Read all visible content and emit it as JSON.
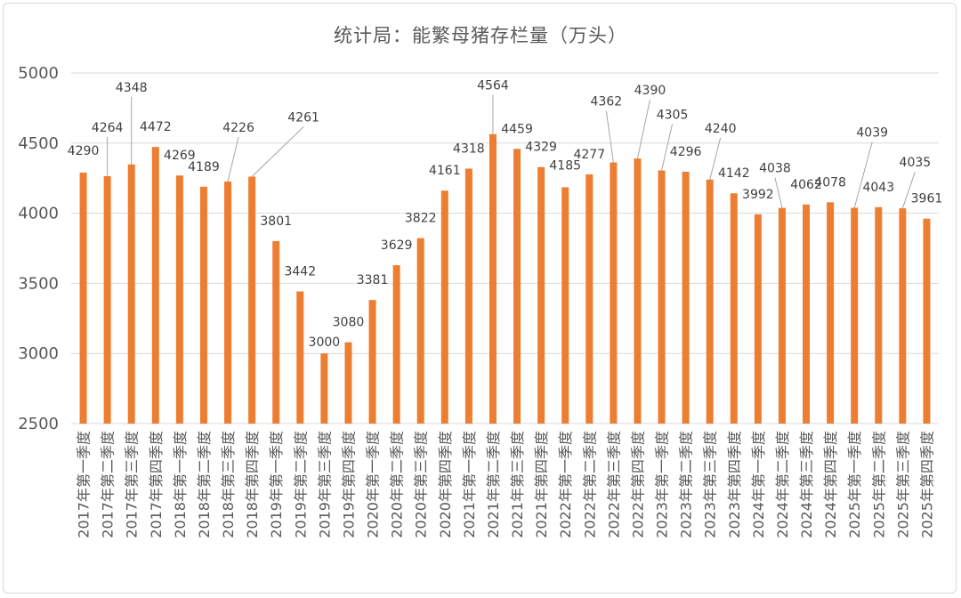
{
  "chart_data": {
    "type": "bar",
    "title": "统计局：能繁母猪存栏量（万头）",
    "categories": [
      "2017年第一季度",
      "2017年第二季度",
      "2017年第三季度",
      "2017年第四季度",
      "2018年第一季度",
      "2018年第二季度",
      "2018年第三季度",
      "2018年第四季度",
      "2019年第一季度",
      "2019年第二季度",
      "2019年第三季度",
      "2019年第四季度",
      "2020年第一季度",
      "2020年第二季度",
      "2020年第三季度",
      "2020年第四季度",
      "2021年第一季度",
      "2021年第二季度",
      "2021年第三季度",
      "2021年第四季度",
      "2022年第一季度",
      "2022年第二季度",
      "2022年第三季度",
      "2022年第四季度",
      "2023年第一季度",
      "2023年第二季度",
      "2023年第三季度",
      "2023年第四季度",
      "2024年第一季度",
      "2024年第二季度",
      "2024年第三季度",
      "2024年第四季度",
      "2025年第一季度",
      "2025年第二季度",
      "2025年第三季度",
      "2025年第四季度"
    ],
    "values": [
      4290,
      4264,
      4348,
      4472,
      4269,
      4189,
      4226,
      4261,
      3801,
      3442,
      3000,
      3080,
      3381,
      3629,
      3822,
      4161,
      4318,
      4564,
      4459,
      4329,
      4185,
      4277,
      4362,
      4390,
      4305,
      4296,
      4240,
      4142,
      3992,
      4038,
      4062,
      4078,
      4039,
      4043,
      4035,
      3961
    ],
    "ylim": [
      2500,
      5000
    ],
    "yticks": [
      2500,
      3000,
      3500,
      4000,
      4500,
      5000
    ],
    "grid": true,
    "bar_color": "#ED7D31",
    "grid_color": "#d9d9d9"
  }
}
